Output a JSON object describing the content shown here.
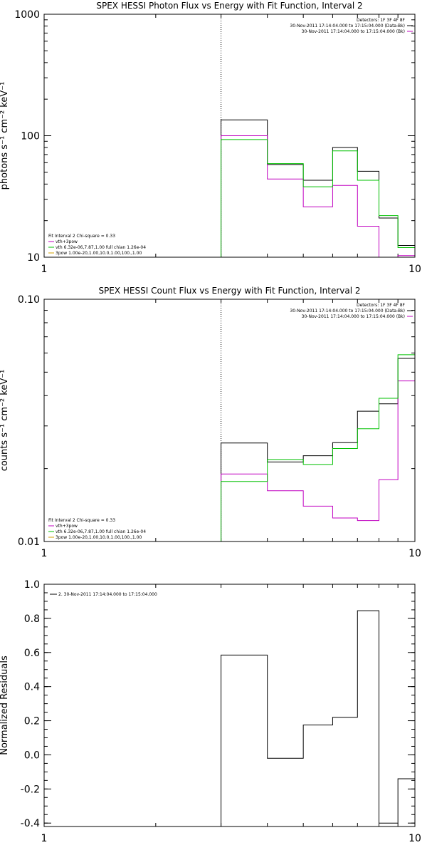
{
  "chart_data": [
    {
      "type": "line",
      "title": "SPEX HESSI Photon Flux vs Energy with Fit Function, Interval 2",
      "ylabel": "photons s⁻¹ cm⁻² keV⁻¹",
      "xlabel": "",
      "xscale": "log",
      "yscale": "log",
      "xlim": [
        1,
        10
      ],
      "ylim": [
        10,
        1000
      ],
      "xticks": [
        {
          "v": 1,
          "label": "1"
        },
        {
          "v": 10,
          "label": "10"
        }
      ],
      "yticks": [
        {
          "v": 10,
          "label": "10"
        },
        {
          "v": 100,
          "label": "100"
        },
        {
          "v": 1000,
          "label": "1000"
        }
      ],
      "vline": 3.0,
      "bin_edges": [
        3.0,
        4.0,
        5.0,
        6.0,
        7.0,
        8.0,
        9.0,
        10.0
      ],
      "series": [
        {
          "name": "",
          "color": "#000000",
          "values": [
            135,
            58,
            43,
            80,
            51,
            21,
            12.5
          ]
        },
        {
          "name": "",
          "color": "#c000c0",
          "values": [
            100,
            44,
            26,
            39,
            18,
            10,
            10.3
          ]
        },
        {
          "name": "",
          "color": "#00c000",
          "values": [
            93,
            59,
            38,
            75,
            43,
            22,
            12
          ]
        }
      ],
      "legend_right": [
        "Detectors: 1F 3F 4F 8F",
        "30-Nov-2011 17:14:04.000 to 17:15:04.000 (Data-Bk)",
        "30-Nov-2011 17:14:04.000 to 17:15:04.000 (Bk)"
      ],
      "legend_right_colors": [
        "#000000",
        "#000000",
        "#c000c0"
      ],
      "legend_left": [
        "Fit Interval 2   Chi-square = 0.33",
        "vth+3pow",
        "vth 6.32e-06,7.87,1.00  full chian 1.26e-04",
        "3pow 1.00e-20,1.00,10.0,1.00,100.,1.00"
      ],
      "legend_left_colors": [
        "",
        "#c000c0",
        "#00c000",
        "#d0a000"
      ]
    },
    {
      "type": "line",
      "title": "SPEX HESSI Count Flux vs Energy with Fit Function, Interval 2",
      "ylabel": "counts s⁻¹ cm⁻² keV⁻¹",
      "xlabel": "",
      "xscale": "log",
      "yscale": "log",
      "xlim": [
        1,
        10
      ],
      "ylim": [
        0.01,
        0.1
      ],
      "xticks": [
        {
          "v": 1,
          "label": "1"
        },
        {
          "v": 10,
          "label": "10"
        }
      ],
      "yticks": [
        {
          "v": 0.01,
          "label": "0.01"
        },
        {
          "v": 0.1,
          "label": "0.10"
        }
      ],
      "vline": 3.0,
      "bin_edges": [
        3.0,
        4.0,
        5.0,
        6.0,
        7.0,
        8.0,
        9.0,
        10.0
      ],
      "series": [
        {
          "name": "",
          "color": "#000000",
          "values": [
            0.0255,
            0.0213,
            0.0226,
            0.0256,
            0.0345,
            0.037,
            0.057
          ]
        },
        {
          "name": "",
          "color": "#c000c0",
          "values": [
            0.019,
            0.0162,
            0.014,
            0.0125,
            0.0122,
            0.018,
            0.046
          ]
        },
        {
          "name": "",
          "color": "#00c000",
          "values": [
            0.0177,
            0.0218,
            0.0208,
            0.0242,
            0.0292,
            0.039,
            0.059
          ]
        }
      ],
      "legend_right": [
        "Detectors: 1F 3F 4F 8F",
        "30-Nov-2011 17:14:04.000 to 17:15:04.000 (Data-Bk)",
        "30-Nov-2011 17:14:04.000 to 17:15:04.000 (Bk)"
      ],
      "legend_right_colors": [
        "#000000",
        "#000000",
        "#c000c0"
      ],
      "legend_left": [
        "Fit Interval 2   Chi-square = 0.33",
        "vth+3pow",
        "vth 6.32e-06,7.87,1.00  full chian 1.26e-04",
        "3pow 1.00e-20,1.00,10.0,1.00,100.,1.00"
      ],
      "legend_left_colors": [
        "",
        "#c000c0",
        "#00c000",
        "#d0a000"
      ]
    },
    {
      "type": "line",
      "title": "",
      "ylabel": "Normalized Residuals",
      "xlabel": "",
      "xscale": "log",
      "yscale": "linear",
      "xlim": [
        1,
        10
      ],
      "ylim": [
        -0.42,
        1.0
      ],
      "xticks": [
        {
          "v": 1,
          "label": "1"
        },
        {
          "v": 10,
          "label": "10"
        }
      ],
      "yticks": [
        {
          "v": -0.4,
          "label": "-0.4"
        },
        {
          "v": -0.2,
          "label": "-0.2"
        },
        {
          "v": 0.0,
          "label": "0.0"
        },
        {
          "v": 0.2,
          "label": "0.2"
        },
        {
          "v": 0.4,
          "label": "0.4"
        },
        {
          "v": 0.6,
          "label": "0.6"
        },
        {
          "v": 0.8,
          "label": "0.8"
        },
        {
          "v": 1.0,
          "label": "1.0"
        }
      ],
      "vline": null,
      "bin_edges": [
        3.0,
        4.0,
        5.0,
        6.0,
        7.0,
        8.0,
        9.0,
        10.0
      ],
      "series": [
        {
          "name": "2. 30-Nov-2011 17:14:04.000 to 17:15:04.000",
          "color": "#000000",
          "values": [
            0.585,
            -0.02,
            0.175,
            0.22,
            0.845,
            -0.4,
            -0.14
          ]
        }
      ],
      "legend_right": [],
      "legend_right_colors": [],
      "legend_left": [],
      "legend_left_colors": []
    }
  ]
}
